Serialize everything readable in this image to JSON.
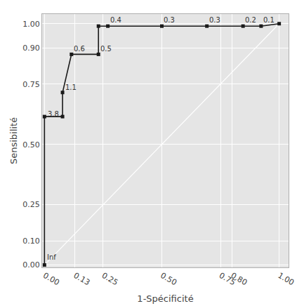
{
  "chart_data": {
    "type": "line",
    "xlabel": "1-Spécificité",
    "ylabel": "Sensibilité",
    "series": [
      {
        "type": "line",
        "color": "#ffffff",
        "line_style": "solid",
        "x": [
          0,
          1
        ],
        "values": [
          0,
          1
        ]
      },
      {
        "type": "line",
        "color": "#1a1a1a",
        "marker": "square",
        "line_style": "solid",
        "x": [
          0.0,
          0.0,
          0.077,
          0.077,
          0.115,
          0.23,
          0.23,
          0.27,
          0.5,
          0.692,
          0.846,
          0.923,
          1.0
        ],
        "values": [
          0.0,
          0.615,
          0.615,
          0.715,
          0.873,
          0.873,
          0.99,
          0.99,
          0.99,
          0.99,
          0.99,
          0.99,
          1.0
        ]
      }
    ],
    "annotations": [
      {
        "text": "Inf",
        "x": 0.005,
        "y": 0.01
      },
      {
        "text": "3.8",
        "x": 0.007,
        "y": 0.605
      },
      {
        "text": "1.1",
        "x": 0.082,
        "y": 0.715
      },
      {
        "text": "0.6",
        "x": 0.118,
        "y": 0.873
      },
      {
        "text": "0.5",
        "x": 0.233,
        "y": 0.873
      },
      {
        "text": "0.4",
        "x": 0.273,
        "y": 0.993
      },
      {
        "text": "0.3",
        "x": 0.503,
        "y": 0.993
      },
      {
        "text": "0.3",
        "x": 0.695,
        "y": 0.993
      },
      {
        "text": "0.2",
        "x": 0.849,
        "y": 0.993
      },
      {
        "text": "0.1",
        "x": 0.926,
        "y": 0.993
      }
    ],
    "xlim": [
      -0.01,
      1.04
    ],
    "ylim": [
      -0.01,
      1.04
    ],
    "xticks": [
      {
        "value": 0.0,
        "label": "0.00"
      },
      {
        "value": 0.13,
        "label": "0.13"
      },
      {
        "value": 0.25,
        "label": "0.25"
      },
      {
        "value": 0.5,
        "label": "0.50"
      },
      {
        "value": 0.75,
        "label": "0.75"
      },
      {
        "value": 0.8,
        "label": "0.80"
      },
      {
        "value": 1.0,
        "label": "1.00"
      }
    ],
    "yticks": [
      {
        "value": 0.0,
        "label": "0.00"
      },
      {
        "value": 0.1,
        "label": "0.10"
      },
      {
        "value": 0.25,
        "label": "0.25"
      },
      {
        "value": 0.5,
        "label": "0.50"
      },
      {
        "value": 0.75,
        "label": "0.75"
      },
      {
        "value": 0.9,
        "label": "0.90"
      },
      {
        "value": 1.0,
        "label": "1.00"
      }
    ],
    "grid": true
  }
}
